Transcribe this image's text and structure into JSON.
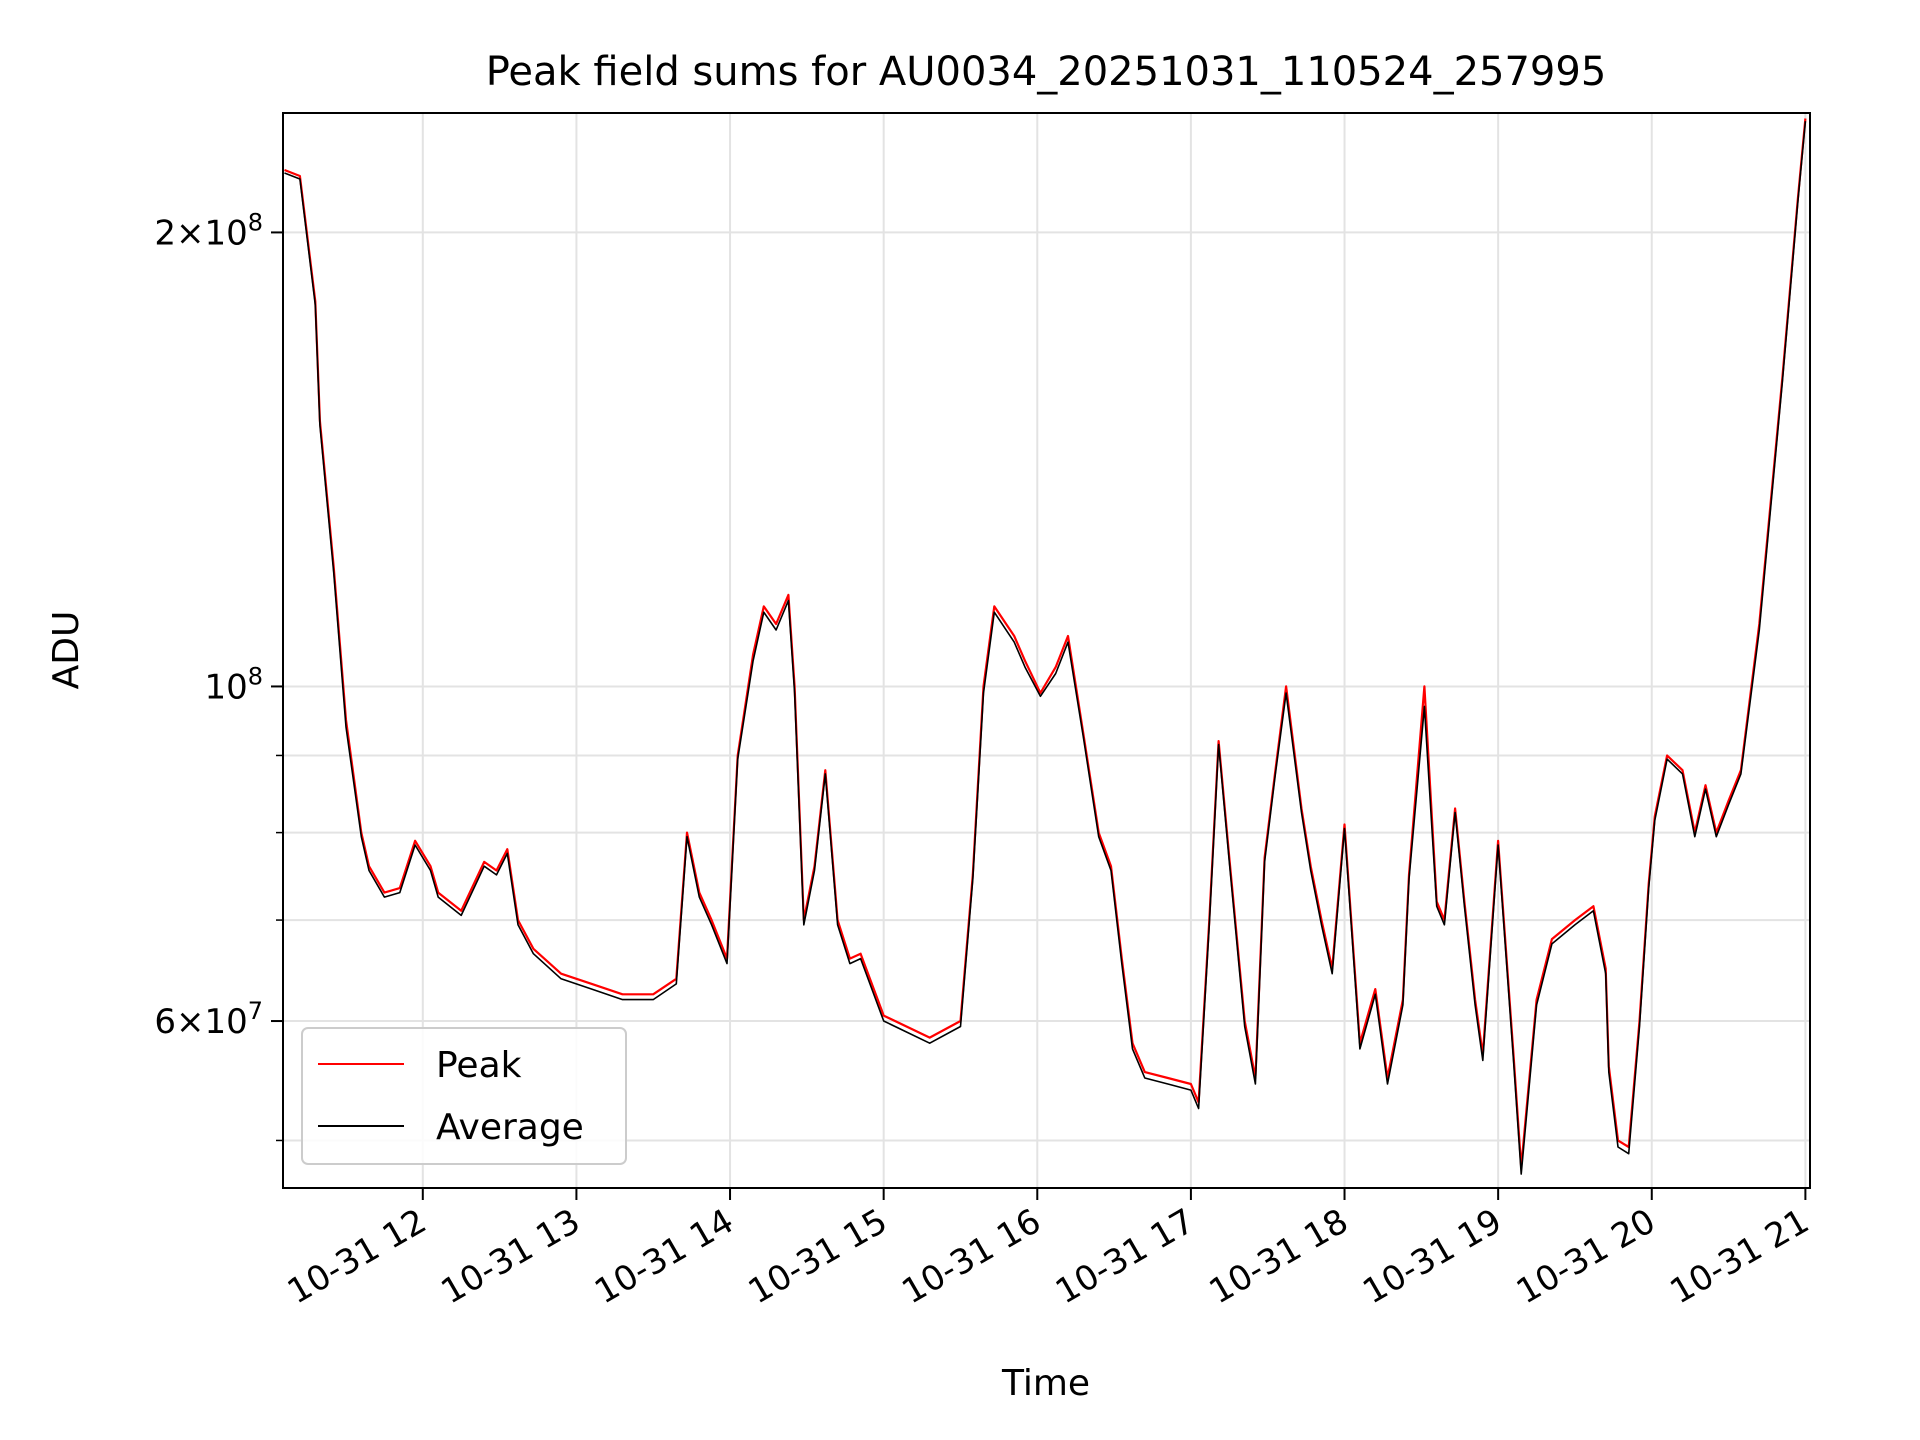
{
  "chart_data": {
    "type": "line",
    "title": "Peak field sums for AU0034_20251031_110524_257995",
    "xlabel": "Time",
    "ylabel": "ADU",
    "yscale": "log",
    "xlim": [
      11.09,
      21.03
    ],
    "ylim": [
      46500000,
      240000000
    ],
    "grid": true,
    "legend_position": "lower-left",
    "x_ticks": [
      {
        "value": 12,
        "label": "10-31 12"
      },
      {
        "value": 13,
        "label": "10-31 13"
      },
      {
        "value": 14,
        "label": "10-31 14"
      },
      {
        "value": 15,
        "label": "10-31 15"
      },
      {
        "value": 16,
        "label": "10-31 16"
      },
      {
        "value": 17,
        "label": "10-31 17"
      },
      {
        "value": 18,
        "label": "10-31 18"
      },
      {
        "value": 19,
        "label": "10-31 19"
      },
      {
        "value": 20,
        "label": "10-31 20"
      },
      {
        "value": 21,
        "label": "10-31 21"
      }
    ],
    "y_ticks_major": [
      {
        "value": 60000000,
        "label_base": "6×10",
        "label_exp": "7"
      },
      {
        "value": 100000000,
        "label_base": "10",
        "label_exp": "8"
      },
      {
        "value": 200000000,
        "label_base": "2×10",
        "label_exp": "8"
      }
    ],
    "y_ticks_minor": [
      50000000,
      70000000,
      80000000,
      90000000
    ],
    "series": [
      {
        "name": "Peak",
        "color": "#ff0000",
        "x": [
          11.1,
          11.2,
          11.3,
          11.33,
          11.42,
          11.5,
          11.6,
          11.65,
          11.75,
          11.85,
          11.95,
          12.05,
          12.1,
          12.25,
          12.4,
          12.48,
          12.55,
          12.62,
          12.72,
          12.9,
          13.1,
          13.3,
          13.5,
          13.65,
          13.72,
          13.8,
          13.88,
          13.98,
          14.05,
          14.15,
          14.22,
          14.3,
          14.38,
          14.42,
          14.48,
          14.55,
          14.62,
          14.7,
          14.78,
          14.85,
          15.0,
          15.3,
          15.5,
          15.58,
          15.65,
          15.72,
          15.85,
          15.92,
          16.02,
          16.12,
          16.2,
          16.3,
          16.4,
          16.48,
          16.55,
          16.62,
          16.7,
          16.85,
          17.0,
          17.05,
          17.12,
          17.18,
          17.25,
          17.35,
          17.42,
          17.48,
          17.55,
          17.62,
          17.72,
          17.78,
          17.85,
          17.92,
          18.0,
          18.1,
          18.2,
          18.28,
          18.38,
          18.42,
          18.52,
          18.6,
          18.65,
          18.72,
          18.78,
          18.85,
          18.9,
          19.0,
          19.1,
          19.15,
          19.25,
          19.35,
          19.5,
          19.62,
          19.7,
          19.72,
          19.78,
          19.85,
          19.92,
          19.98,
          20.02,
          20.1,
          20.2,
          20.28,
          20.35,
          20.42,
          20.5,
          20.58,
          20.7,
          20.85,
          20.95,
          21.0
        ],
        "y": [
          220000000,
          218000000,
          180000000,
          150000000,
          120000000,
          95000000,
          80000000,
          76000000,
          73000000,
          73500000,
          79000000,
          76000000,
          73000000,
          71000000,
          76500000,
          75500000,
          78000000,
          70000000,
          67000000,
          64500000,
          63500000,
          62500000,
          62500000,
          64000000,
          80000000,
          73000000,
          70000000,
          66000000,
          90000000,
          105000000,
          113000000,
          110000000,
          115000000,
          100000000,
          70000000,
          76000000,
          88000000,
          70000000,
          66000000,
          66500000,
          60500000,
          58500000,
          60000000,
          75000000,
          100000000,
          113000000,
          108000000,
          104000000,
          99000000,
          103000000,
          108000000,
          93000000,
          80000000,
          76000000,
          66000000,
          58000000,
          55500000,
          55000000,
          54500000,
          53000000,
          70000000,
          92000000,
          77000000,
          60000000,
          55000000,
          77000000,
          88000000,
          100000000,
          83000000,
          76000000,
          70000000,
          65000000,
          81000000,
          58000000,
          63000000,
          55000000,
          62000000,
          75000000,
          100000000,
          72000000,
          70000000,
          83000000,
          72000000,
          62000000,
          57000000,
          79000000,
          57000000,
          48000000,
          62000000,
          68000000,
          70000000,
          71500000,
          65000000,
          56000000,
          50000000,
          49500000,
          60000000,
          74000000,
          82000000,
          90000000,
          88000000,
          80000000,
          86000000,
          80000000,
          84000000,
          88000000,
          110000000,
          160000000,
          210000000,
          238000000
        ]
      },
      {
        "name": "Average",
        "color": "#000000",
        "x": [
          11.1,
          11.2,
          11.3,
          11.33,
          11.42,
          11.5,
          11.6,
          11.65,
          11.75,
          11.85,
          11.95,
          12.05,
          12.1,
          12.25,
          12.4,
          12.48,
          12.55,
          12.62,
          12.72,
          12.9,
          13.1,
          13.3,
          13.5,
          13.65,
          13.72,
          13.8,
          13.88,
          13.98,
          14.05,
          14.15,
          14.22,
          14.3,
          14.38,
          14.42,
          14.48,
          14.55,
          14.62,
          14.7,
          14.78,
          14.85,
          15.0,
          15.3,
          15.5,
          15.58,
          15.65,
          15.72,
          15.85,
          15.92,
          16.02,
          16.12,
          16.2,
          16.3,
          16.4,
          16.48,
          16.55,
          16.62,
          16.7,
          16.85,
          17.0,
          17.05,
          17.12,
          17.18,
          17.25,
          17.35,
          17.42,
          17.48,
          17.55,
          17.62,
          17.72,
          17.78,
          17.85,
          17.92,
          18.0,
          18.1,
          18.2,
          18.28,
          18.38,
          18.42,
          18.52,
          18.6,
          18.65,
          18.72,
          18.78,
          18.85,
          18.9,
          19.0,
          19.1,
          19.15,
          19.25,
          19.35,
          19.5,
          19.62,
          19.7,
          19.72,
          19.78,
          19.85,
          19.92,
          19.98,
          20.02,
          20.1,
          20.2,
          20.28,
          20.35,
          20.42,
          20.5,
          20.58,
          20.7,
          20.85,
          20.95,
          21.0
        ],
        "y": [
          219000000,
          217000000,
          179000000,
          149000000,
          119000000,
          94000000,
          79500000,
          75500000,
          72500000,
          73000000,
          78500000,
          75500000,
          72500000,
          70500000,
          76000000,
          75000000,
          77500000,
          69500000,
          66500000,
          64000000,
          63000000,
          62000000,
          62000000,
          63500000,
          79500000,
          72500000,
          69500000,
          65500000,
          89500000,
          104000000,
          112000000,
          109000000,
          114000000,
          99000000,
          69500000,
          75500000,
          87500000,
          69500000,
          65500000,
          66000000,
          60000000,
          58000000,
          59500000,
          74500000,
          99000000,
          112000000,
          107000000,
          103000000,
          98500000,
          102000000,
          107000000,
          92500000,
          79500000,
          75500000,
          65500000,
          57500000,
          55000000,
          54500000,
          54000000,
          52500000,
          69500000,
          91500000,
          76500000,
          59500000,
          54500000,
          76500000,
          87500000,
          99000000,
          82500000,
          75500000,
          69500000,
          64500000,
          80500000,
          57500000,
          62500000,
          54500000,
          61500000,
          74500000,
          97000000,
          71500000,
          69500000,
          82500000,
          71500000,
          61500000,
          56500000,
          78500000,
          56500000,
          47500000,
          61500000,
          67500000,
          69500000,
          71000000,
          64500000,
          55500000,
          49500000,
          49000000,
          59500000,
          73500000,
          81500000,
          89500000,
          87500000,
          79500000,
          85500000,
          79500000,
          83500000,
          87500000,
          109000000,
          159000000,
          209000000,
          237000000
        ]
      }
    ]
  }
}
